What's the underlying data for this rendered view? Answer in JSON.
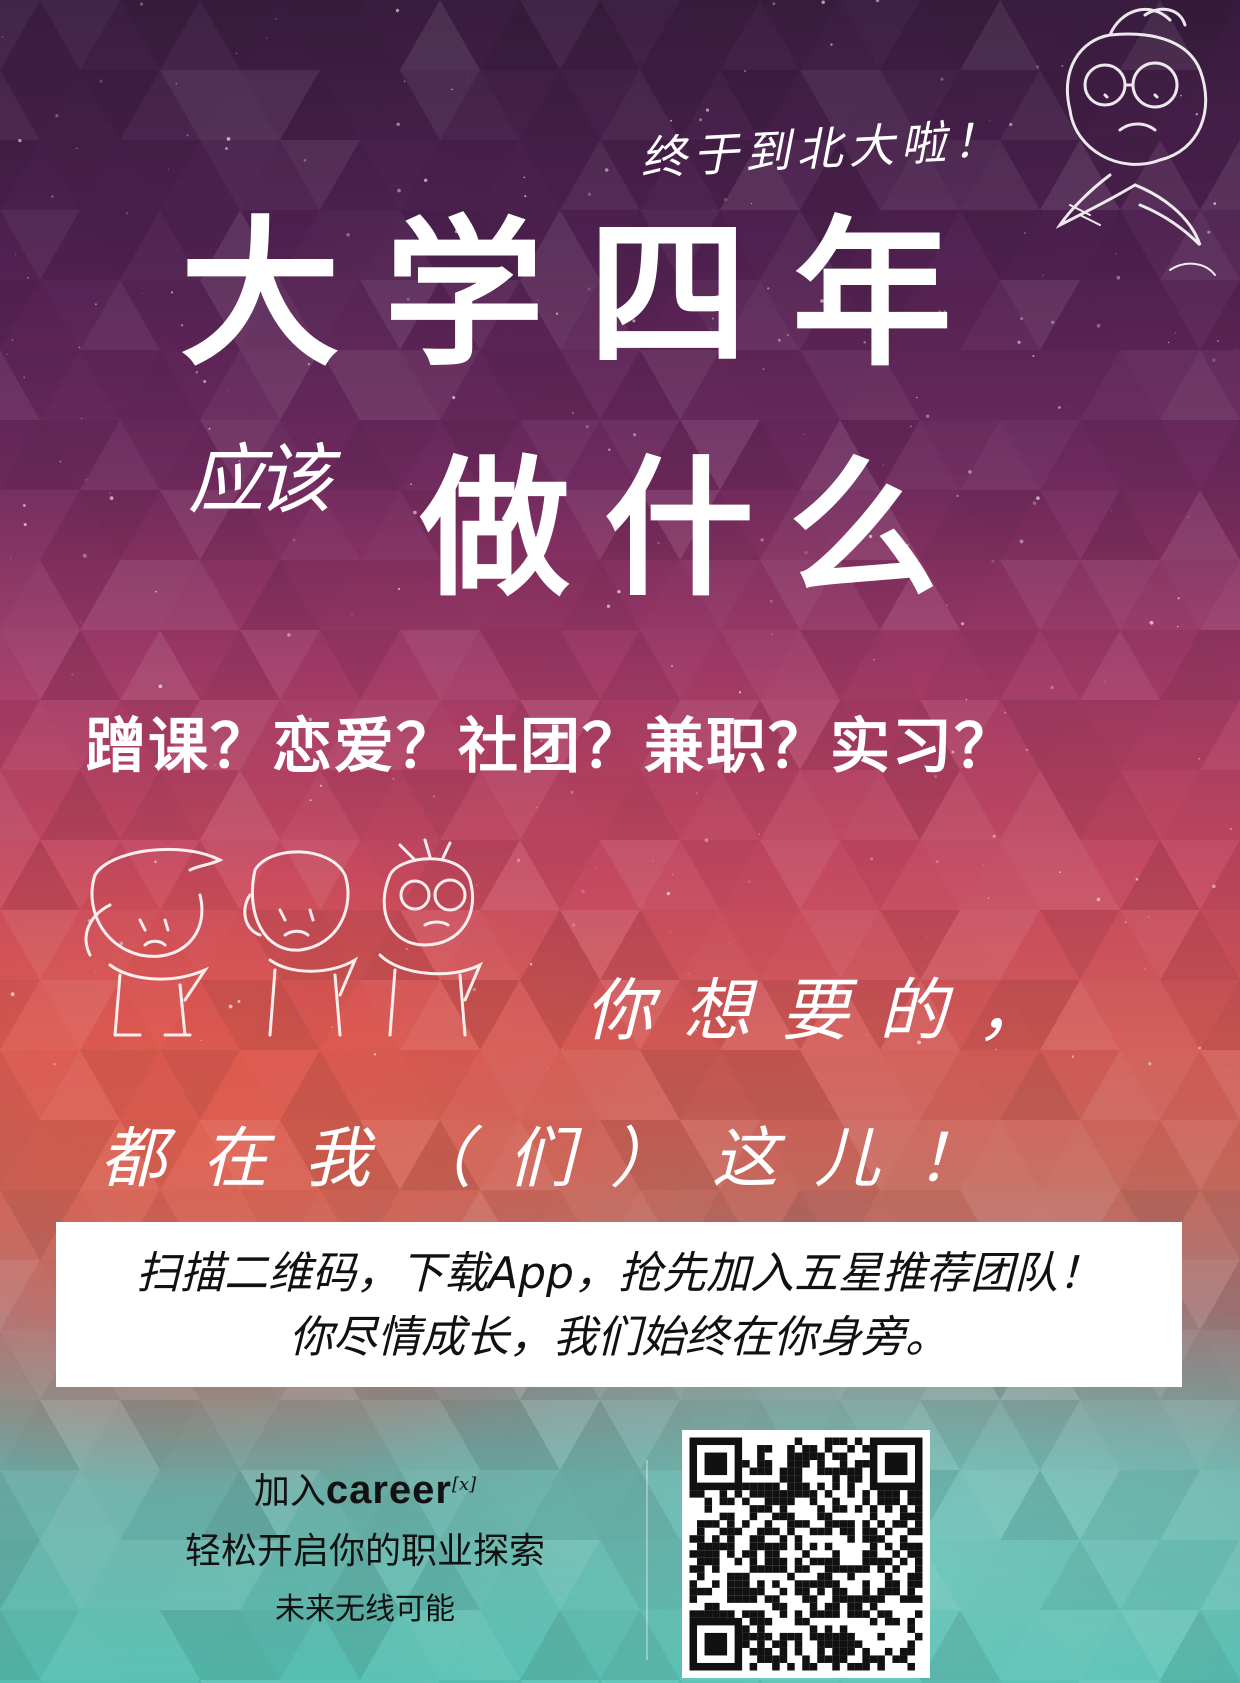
{
  "top_note": "终于到北大啦！",
  "title": {
    "line1": "大学四年",
    "small": "应该",
    "line2": "做什么"
  },
  "questions": "蹭课？恋爱？社团？兼职？实习？",
  "tagline": {
    "line1": "你想要的，",
    "line2": "都在我（们）这儿！"
  },
  "box": {
    "line1": "扫描二维码，下载App，抢先加入五星推荐团队！",
    "line2": "你尽情成长，我们始终在你身旁。"
  },
  "join": {
    "prefix": "加入",
    "brand": "career",
    "brand_sup": "[x]",
    "slogan": "轻松开启你的职业探索",
    "sub_slogan": "未来无线可能"
  },
  "colors": {
    "bg_top": "#3a1d40",
    "bg_mid": "#c4485f",
    "bg_bottom": "#57c1b4",
    "text": "#ffffff"
  },
  "icons": [
    "cartoon-character-icon",
    "qr-code-icon"
  ]
}
